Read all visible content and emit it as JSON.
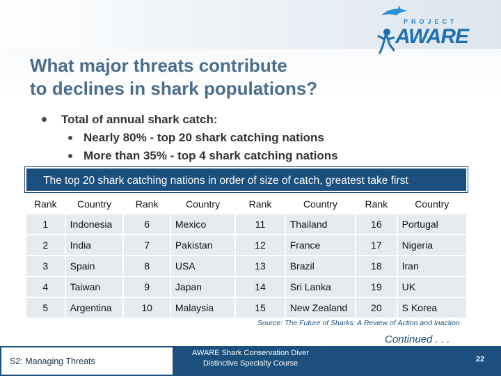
{
  "logo": {
    "small": "PROJECT",
    "main": "AWARE",
    "icon": "shark-diver-icon"
  },
  "title_line1": "What major threats contribute",
  "title_line2": "to declines in shark populations?",
  "bullets": {
    "main": "Total of annual shark catch:",
    "sub": [
      "Nearly 80% - top 20 shark catching nations",
      "More than 35% - top 4 shark catching nations"
    ]
  },
  "table": {
    "caption": "The top 20 shark catching nations in order of size of catch, greatest take first",
    "headers": [
      "Rank",
      "Country",
      "Rank",
      "Country",
      "Rank",
      "Country",
      "Rank",
      "Country"
    ],
    "rows": [
      [
        "1",
        "Indonesia",
        "6",
        "Mexico",
        "11",
        "Thailand",
        "16",
        "Portugal"
      ],
      [
        "2",
        "India",
        "7",
        "Pakistan",
        "12",
        "France",
        "17",
        "Nigeria"
      ],
      [
        "3",
        "Spain",
        "8",
        "USA",
        "13",
        "Brazil",
        "18",
        "Iran"
      ],
      [
        "4",
        "Taiwan",
        "9",
        "Japan",
        "14",
        "Sri Lanka",
        "19",
        "UK"
      ],
      [
        "5",
        "Argentina",
        "10",
        "Malaysia",
        "15",
        "New Zealand",
        "20",
        "S Korea"
      ]
    ]
  },
  "source": "Source: The Future of Sharks: A Review of Action and Inaction",
  "continued": "Continued . . .",
  "footer": {
    "section": "S2: Managing Threats",
    "course_line1": "AWARE Shark Conservation Diver",
    "course_line2": "Distinctive Specialty Course",
    "page": "22"
  },
  "colors": {
    "navy": "#1b4f7d",
    "title": "#4a6d8c",
    "cell": "#e6ebef"
  }
}
